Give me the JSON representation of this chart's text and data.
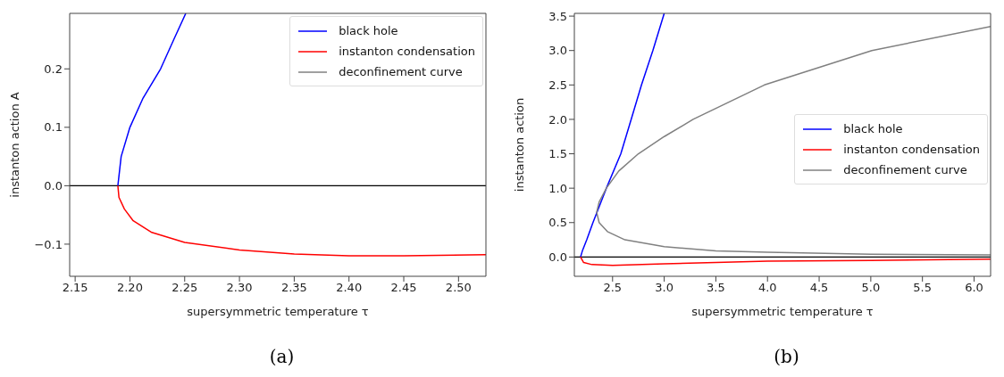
{
  "chart_data": [
    {
      "type": "line",
      "xlabel": "supersymmetric temperature τ",
      "ylabel": "instanton action A",
      "xlim": [
        2.145,
        2.525
      ],
      "ylim": [
        -0.155,
        0.295
      ],
      "xticks": [
        2.15,
        {
          "value": 2.2,
          "label": "2.20"
        },
        2.25,
        {
          "value": 2.3,
          "label": "2.30"
        },
        2.35,
        {
          "value": 2.4,
          "label": "2.40"
        },
        2.45,
        {
          "value": 2.5,
          "label": "2.50"
        }
      ],
      "yticks": [
        {
          "value": -0.1,
          "label": "−0.1"
        },
        {
          "value": 0,
          "label": "0.0"
        },
        0.1,
        0.2
      ],
      "series": [
        {
          "name": "black hole",
          "color": "#0000ff",
          "x": [
            2.251,
            2.24,
            2.228,
            2.212,
            2.2,
            2.192,
            2.189
          ],
          "values": [
            0.295,
            0.25,
            0.2,
            0.15,
            0.1,
            0.05,
            0
          ]
        },
        {
          "name": "instanton condensation",
          "color": "#ff0000",
          "x": [
            2.189,
            2.19,
            2.195,
            2.203,
            2.22,
            2.25,
            2.3,
            2.35,
            2.4,
            2.45,
            2.525
          ],
          "values": [
            0,
            -0.02,
            -0.04,
            -0.06,
            -0.08,
            -0.097,
            -0.11,
            -0.117,
            -0.12,
            -0.12,
            -0.118
          ]
        },
        {
          "name": "deconfinement curve",
          "color": "#808080"
        }
      ],
      "ref_lines": [
        {
          "axis": "y",
          "value": 0,
          "color": "#000000"
        }
      ],
      "legend": "top right",
      "annotations": [
        "(a)"
      ]
    },
    {
      "type": "line",
      "xlabel": "supersymmetric temperature τ",
      "ylabel": "instanton action",
      "xlim": [
        2.13,
        6.16
      ],
      "ylim": [
        -0.28,
        3.54
      ],
      "xticks": [
        2.5,
        {
          "value": 3,
          "label": "3.0"
        },
        3.5,
        {
          "value": 4,
          "label": "4.0"
        },
        4.5,
        {
          "value": 5,
          "label": "5.0"
        },
        5.5,
        {
          "value": 6,
          "label": "6.0"
        }
      ],
      "yticks": [
        {
          "value": 0,
          "label": "0.0"
        },
        0.5,
        {
          "value": 1,
          "label": "1.0"
        },
        1.5,
        {
          "value": 2,
          "label": "2.0"
        },
        2.5,
        {
          "value": 3,
          "label": "3.0"
        },
        3.5
      ],
      "series": [
        {
          "name": "black hole",
          "color": "#0000ff",
          "x": [
            3.0,
            2.89,
            2.78,
            2.68,
            2.58,
            2.44,
            2.31,
            2.25,
            2.21,
            2.19
          ],
          "values": [
            3.54,
            3.0,
            2.5,
            2.0,
            1.5,
            1.0,
            0.5,
            0.25,
            0.1,
            0
          ]
        },
        {
          "name": "instanton condensation",
          "color": "#ff0000",
          "x": [
            2.19,
            2.22,
            2.3,
            2.5,
            3.0,
            3.5,
            4.0,
            5.0,
            6.16
          ],
          "values": [
            0,
            -0.08,
            -0.11,
            -0.12,
            -0.1,
            -0.08,
            -0.06,
            -0.05,
            -0.03
          ]
        },
        {
          "name": "deconfinement curve",
          "color": "#808080",
          "x": [
            6.16,
            5.0,
            4.0,
            3.5,
            3.0,
            2.62,
            2.45,
            2.37,
            2.346,
            2.37,
            2.44,
            2.56,
            2.75,
            3.0,
            3.28,
            3.97,
            5.01,
            6.16
          ],
          "values": [
            0.03,
            0.04,
            0.07,
            0.09,
            0.15,
            0.25,
            0.37,
            0.5,
            0.65,
            0.8,
            1.0,
            1.25,
            1.5,
            1.75,
            2.0,
            2.5,
            3.0,
            3.35
          ]
        }
      ],
      "ref_lines": [
        {
          "axis": "y",
          "value": 0,
          "color": "#000000"
        }
      ],
      "legend": "right",
      "annotations": [
        "(b)"
      ]
    }
  ]
}
